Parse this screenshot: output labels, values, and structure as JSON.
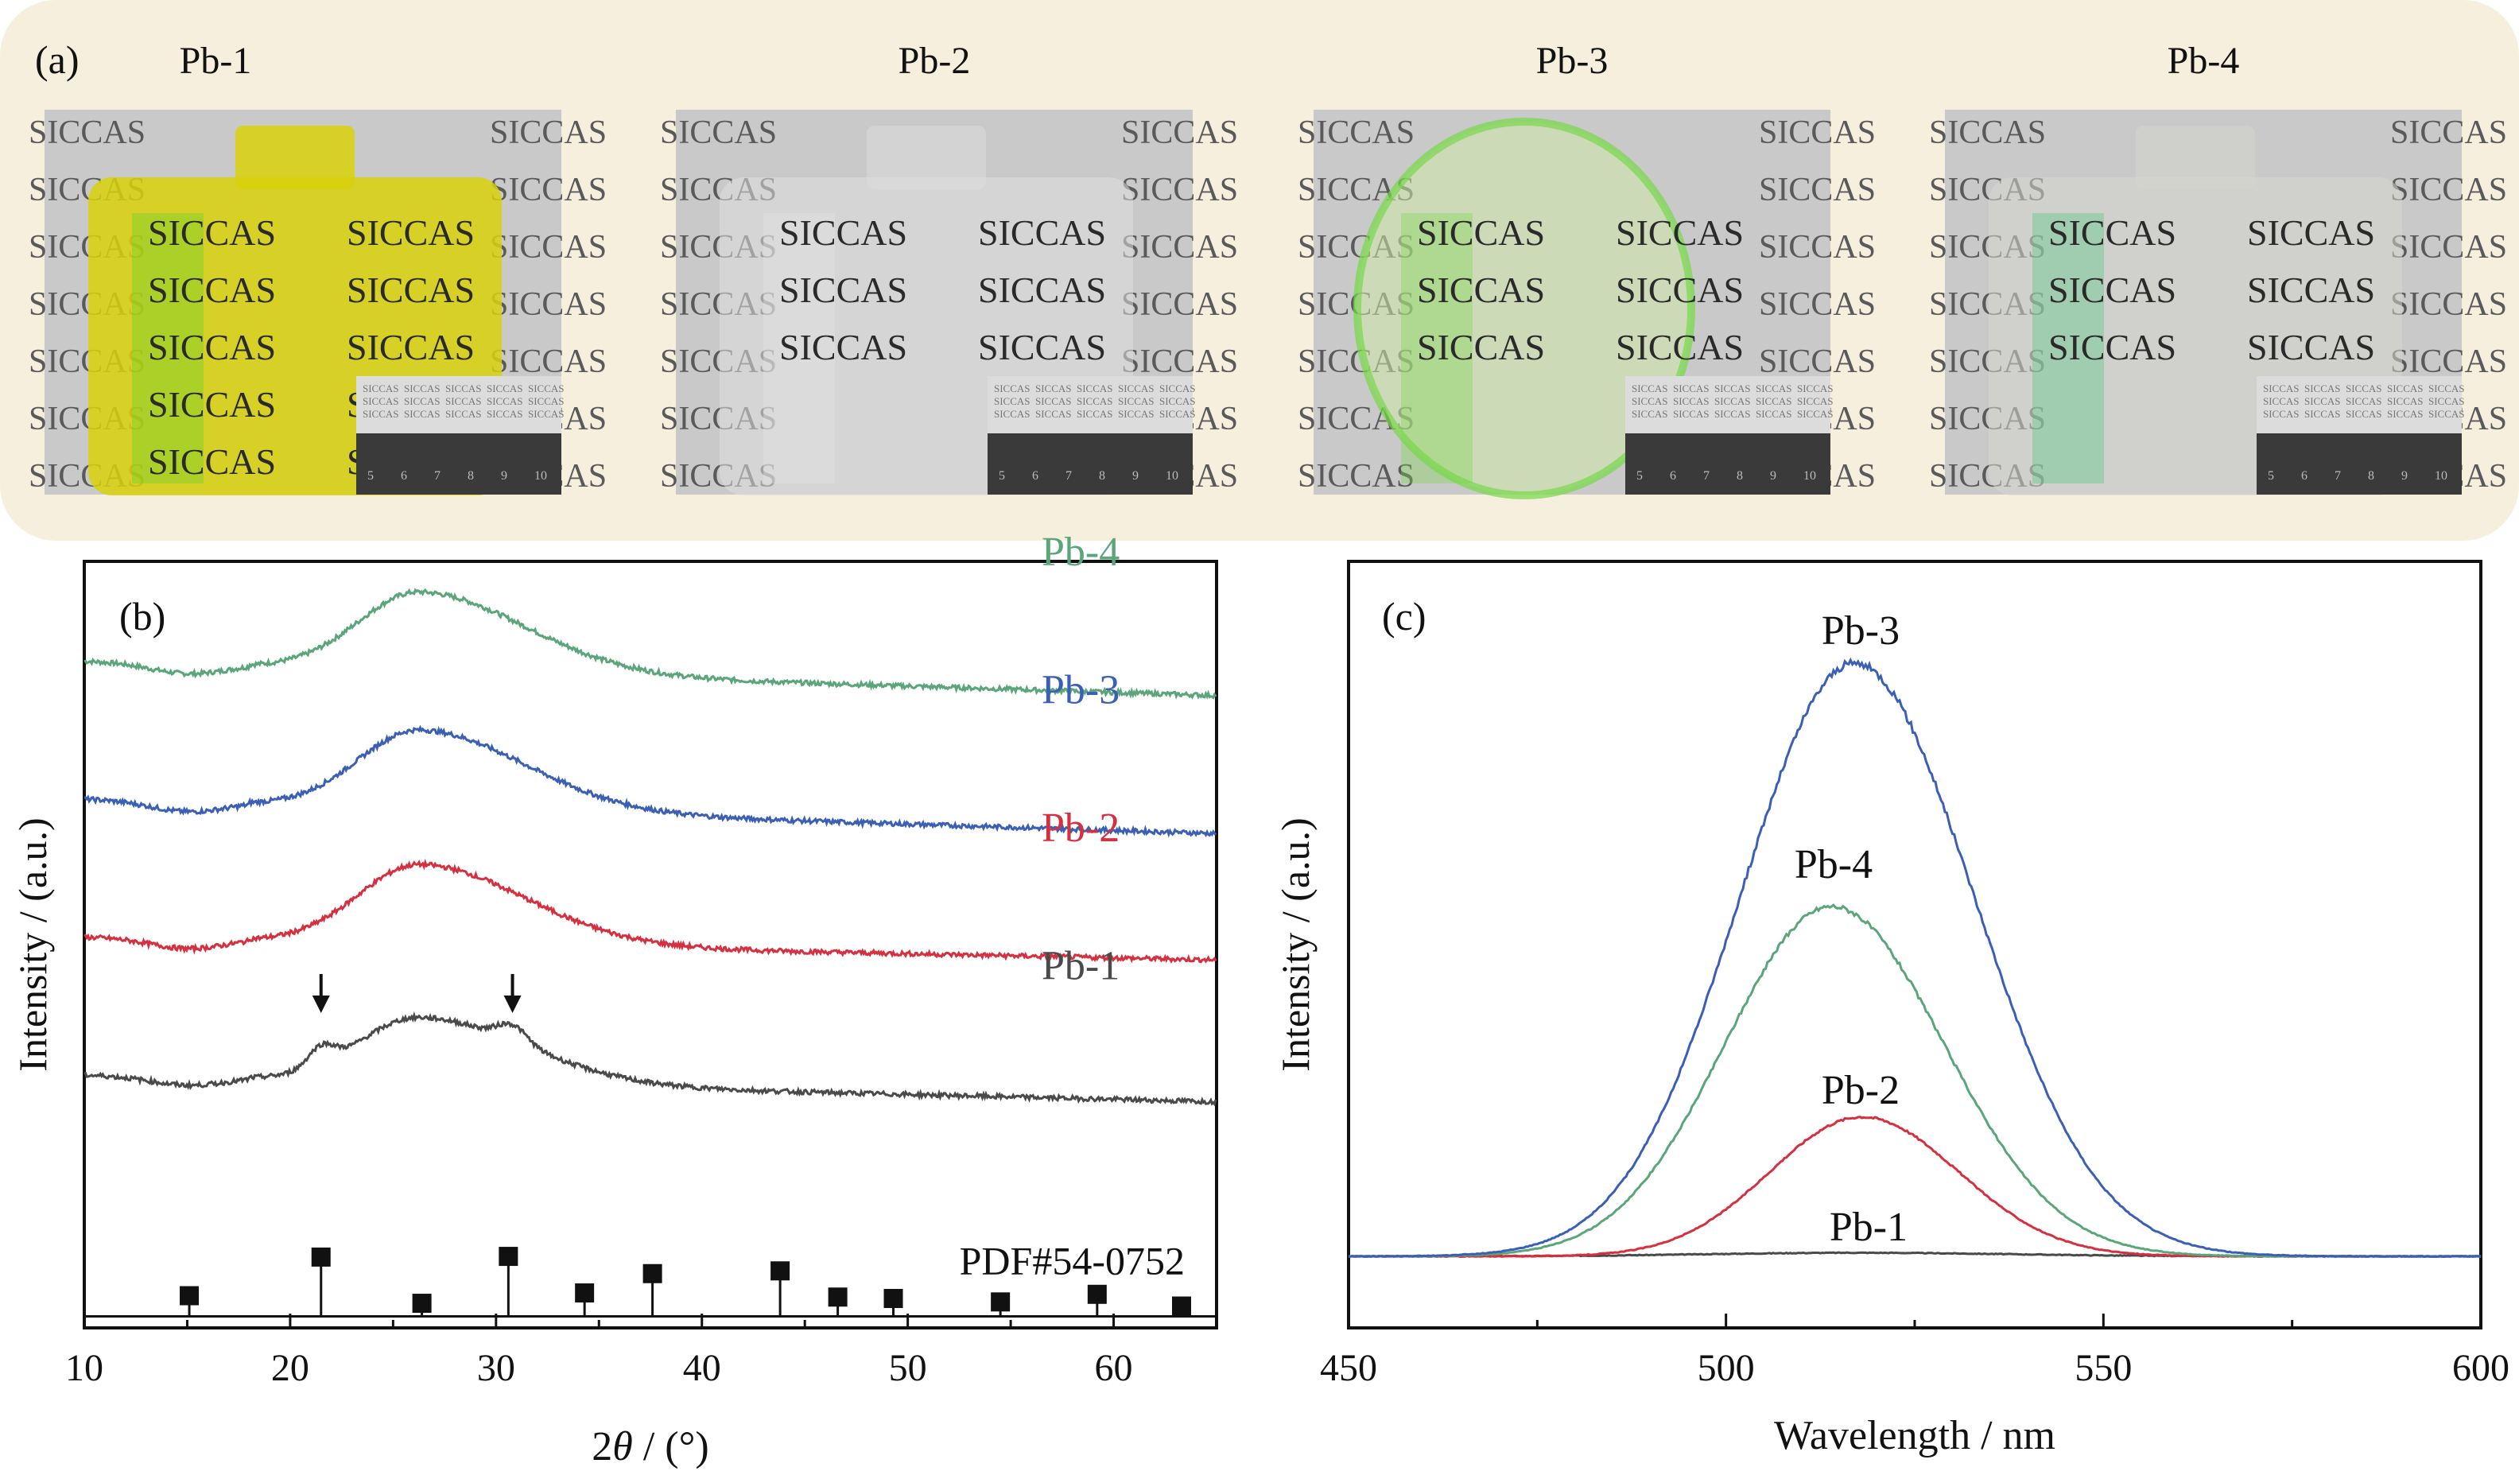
{
  "panel_a": {
    "label": "(a)",
    "samples": [
      {
        "name": "Pb-1",
        "tint": "#d9d10a",
        "glow": "#58d02a",
        "shape": "block",
        "top_text": "SICCAS",
        "grid_text": [
          "SICCAS",
          "SICCAS",
          "SICCAS",
          "SICCAS",
          "SICCAS"
        ]
      },
      {
        "name": "Pb-2",
        "tint": "#dedede",
        "glow": "#e8e8e8",
        "shape": "block",
        "top_text": "SICCAS",
        "grid_text": [
          "SICCAS",
          "SICCAS",
          "SICCAS"
        ]
      },
      {
        "name": "Pb-3",
        "tint": "#cde8a8",
        "glow": "#78d848",
        "shape": "disk",
        "top_text": "SICCAS",
        "grid_text": [
          "SICCAS",
          "SICCAS",
          "SICCAS"
        ]
      },
      {
        "name": "Pb-4",
        "tint": "#d6d6cf",
        "glow": "#48c878",
        "shape": "block",
        "top_text": "SICCAS",
        "grid_text": [
          "SICCAS",
          "SICCAS",
          "SICCAS"
        ]
      }
    ],
    "ruler_ticks": [
      "5",
      "6",
      "7",
      "8",
      "9",
      "10"
    ],
    "ruler_label": "SICCAS",
    "bg_color": "#f6efdd"
  },
  "chart_data": [
    {
      "panel": "(b)",
      "type": "line",
      "xlabel_parts": [
        "2",
        "θ",
        " / (°)"
      ],
      "ylabel": "Intensity / (a.u.)",
      "xlim": [
        10,
        65
      ],
      "xticks": [
        10,
        20,
        30,
        40,
        50,
        60
      ],
      "series": [
        {
          "name": "Pb-4",
          "color": "#5aa57a",
          "offset": 0.87,
          "amp": 0.115,
          "baseline_start": 0.0,
          "baseline_end": -0.045,
          "shoulders": false
        },
        {
          "name": "Pb-3",
          "color": "#3a5fb5",
          "offset": 0.69,
          "amp": 0.115,
          "baseline_start": 0.0,
          "baseline_end": -0.045,
          "shoulders": false
        },
        {
          "name": "Pb-2",
          "color": "#d62f3f",
          "offset": 0.51,
          "amp": 0.115,
          "baseline_start": 0.0,
          "baseline_end": -0.03,
          "shoulders": false
        },
        {
          "name": "Pb-1",
          "color": "#4a4a4a",
          "offset": 0.33,
          "amp": 0.095,
          "baseline_start": 0.0,
          "baseline_end": -0.035,
          "shoulders": true
        }
      ],
      "arrows_at": [
        21.5,
        30.8
      ],
      "reference": {
        "name": "PDF#54-0752",
        "peaks": [
          {
            "x": 15.1,
            "h": 0.3
          },
          {
            "x": 21.5,
            "h": 0.86
          },
          {
            "x": 26.4,
            "h": 0.19
          },
          {
            "x": 30.6,
            "h": 0.87
          },
          {
            "x": 34.3,
            "h": 0.34
          },
          {
            "x": 37.6,
            "h": 0.62
          },
          {
            "x": 43.8,
            "h": 0.66
          },
          {
            "x": 46.6,
            "h": 0.28
          },
          {
            "x": 49.3,
            "h": 0.26
          },
          {
            "x": 54.5,
            "h": 0.21
          },
          {
            "x": 59.2,
            "h": 0.32
          },
          {
            "x": 63.3,
            "h": 0.15
          }
        ]
      }
    },
    {
      "panel": "(c)",
      "type": "line",
      "xlabel": "Wavelength / nm",
      "ylabel": "Intensity / (a.u.)",
      "xlim": [
        450,
        600
      ],
      "xticks": [
        450,
        500,
        550,
        600
      ],
      "ylim": [
        0,
        1.08
      ],
      "series": [
        {
          "name": "Pb-3",
          "color": "#3a5fb5",
          "peak": 517,
          "height": 1.0,
          "sigma": 15.5
        },
        {
          "name": "Pb-4",
          "color": "#5aa57a",
          "peak": 514,
          "height": 0.59,
          "sigma": 14.5
        },
        {
          "name": "Pb-2",
          "color": "#d62f3f",
          "peak": 518,
          "height": 0.235,
          "sigma": 12.5
        },
        {
          "name": "Pb-1",
          "color": "#4a4a4a",
          "peak": 517,
          "height": 0.006,
          "sigma": 20
        }
      ]
    }
  ]
}
